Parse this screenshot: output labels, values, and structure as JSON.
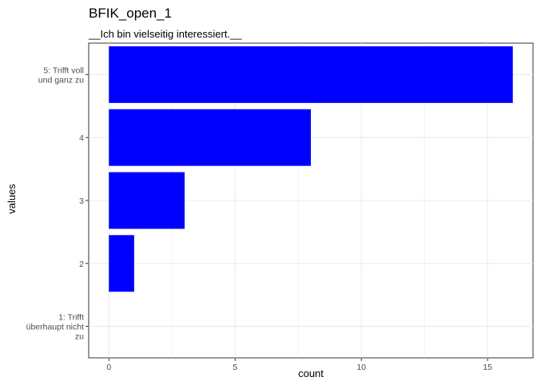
{
  "chart_data": {
    "type": "bar",
    "orientation": "horizontal",
    "title": "BFIK_open_1",
    "subtitle": "__Ich bin vielseitig interessiert.__",
    "xlabel": "count",
    "ylabel": "values",
    "categories": [
      "5: Trifft voll und ganz zu",
      "4",
      "3",
      "2",
      "1: Trifft überhaupt nicht zu"
    ],
    "category_lines": [
      [
        "5: Trifft voll",
        "und ganz zu"
      ],
      [
        "4"
      ],
      [
        "3"
      ],
      [
        "2"
      ],
      [
        "1: Trifft",
        "überhaupt nicht",
        "zu"
      ]
    ],
    "values": [
      16,
      8,
      3,
      1,
      0
    ],
    "xlim": [
      -0.8,
      16.8
    ],
    "xticks": [
      0,
      5,
      10,
      15
    ],
    "bar_color": "#0000ff",
    "grid": true,
    "legend": "none"
  }
}
